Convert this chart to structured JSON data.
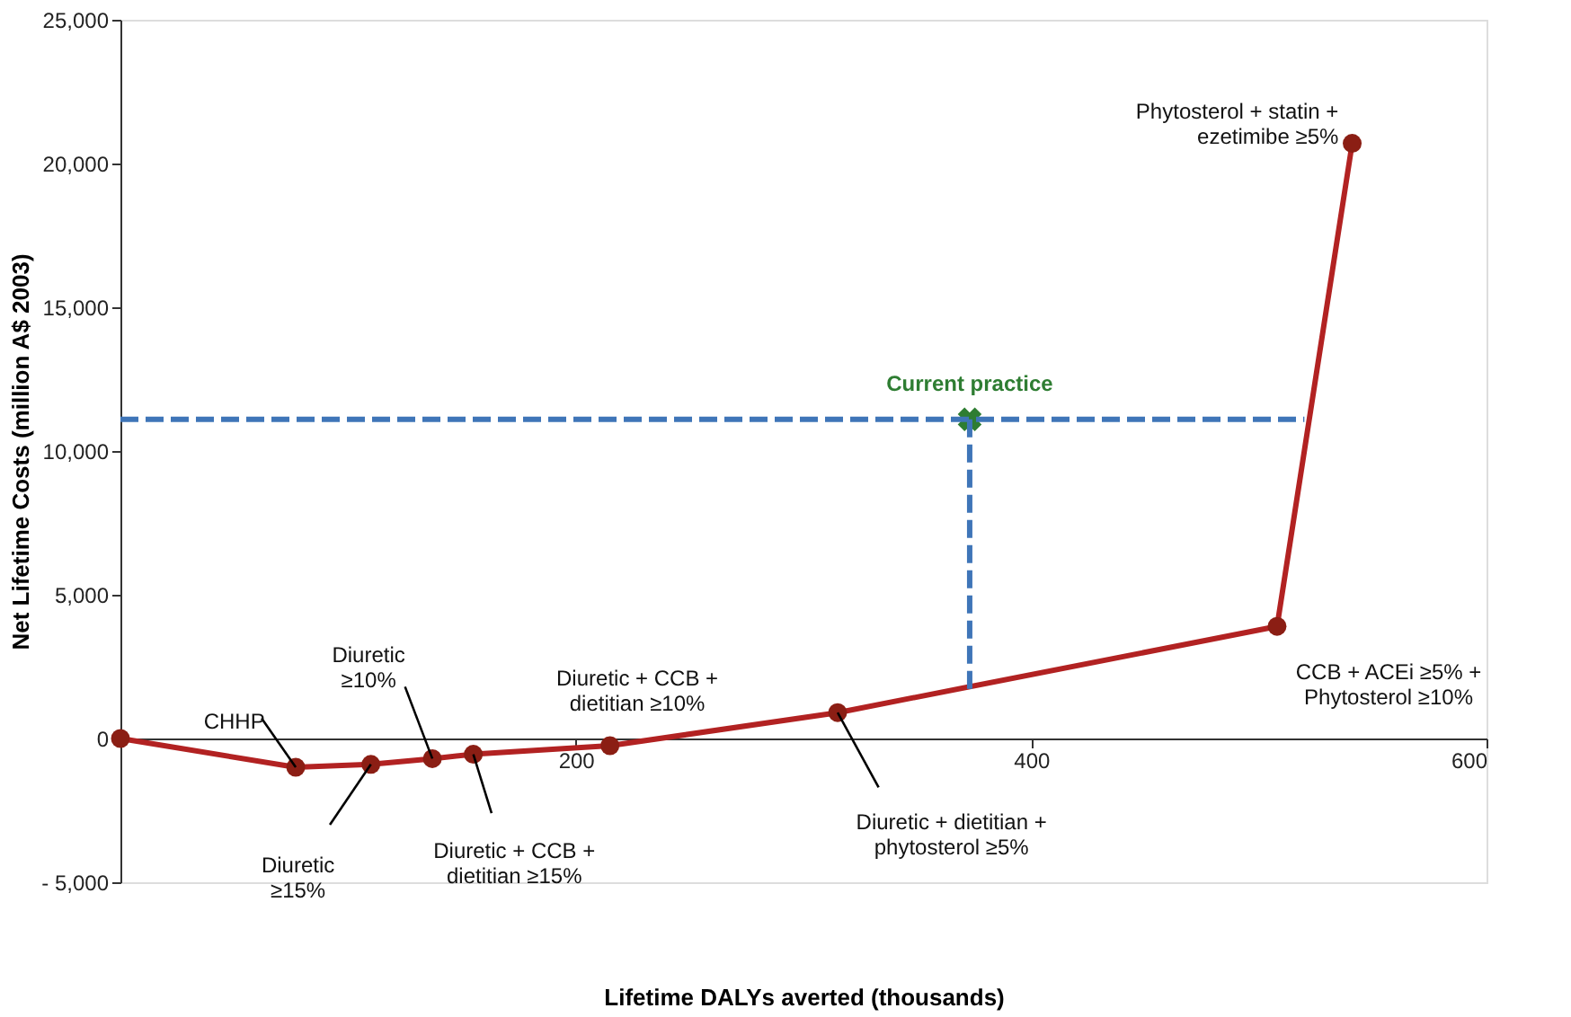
{
  "chart_data": {
    "type": "line",
    "xlabel": "Lifetime DALYs averted (thousands)",
    "ylabel": "Net Lifetime Costs (million A$ 2003)",
    "series": [
      {
        "color": "#b22222",
        "marker": "circle",
        "x": [
          0,
          77,
          110,
          137,
          155,
          215,
          315,
          508,
          541
        ],
        "values": [
          0,
          -1000,
          -900,
          -700,
          -550,
          -250,
          900,
          3900,
          20700
        ]
      },
      {
        "name": "Current practice",
        "type": "scatter",
        "marker": "cross",
        "color": "#2e7d32",
        "x": [
          373
        ],
        "values": [
          11100
        ]
      },
      {
        "type": "line",
        "line_style": "dashed",
        "marker": "none",
        "color": "#3f75b8",
        "x": [
          0,
          520
        ],
        "values": [
          11100,
          11100
        ]
      },
      {
        "type": "line",
        "line_style": "dashed",
        "marker": "none",
        "color": "#3f75b8",
        "x": [
          373,
          373
        ],
        "values": [
          11100,
          1700
        ]
      }
    ],
    "annotations": [
      {
        "text": "CHHP",
        "x": 77,
        "y": -1000
      },
      {
        "text": "Diuretic\n≥15%",
        "x": 110,
        "y": -900
      },
      {
        "text": "Diuretic\n≥10%",
        "x": 137,
        "y": -700
      },
      {
        "text": "Diuretic + CCB +\ndietitian ≥15%",
        "x": 155,
        "y": -550
      },
      {
        "text": "Diuretic + CCB +\ndietitian ≥10%",
        "x": 215,
        "y": -250
      },
      {
        "text": "Diuretic + dietitian +\nphytosterol  ≥5%",
        "x": 315,
        "y": 900
      },
      {
        "text": "CCB + ACEi ≥5% +\nPhytosterol ≥10%",
        "x": 508,
        "y": 3900
      },
      {
        "text": "Phytosterol + statin +\nezetimibe  ≥5%",
        "x": 541,
        "y": 20700
      }
    ],
    "xlim": [
      0,
      600
    ],
    "xticks": [
      200,
      400,
      600
    ],
    "ylim": [
      -5000,
      25000
    ],
    "yticks": [
      {
        "value": -5000,
        "label": "- 5,000"
      },
      {
        "value": 0,
        "label": "0"
      },
      {
        "value": 5000,
        "label": "5,000"
      },
      {
        "value": 10000,
        "label": "10,000"
      },
      {
        "value": 15000,
        "label": "15,000"
      },
      {
        "value": 20000,
        "label": "20,000"
      },
      {
        "value": 25000,
        "label": "25,000"
      }
    ],
    "grid": false
  }
}
